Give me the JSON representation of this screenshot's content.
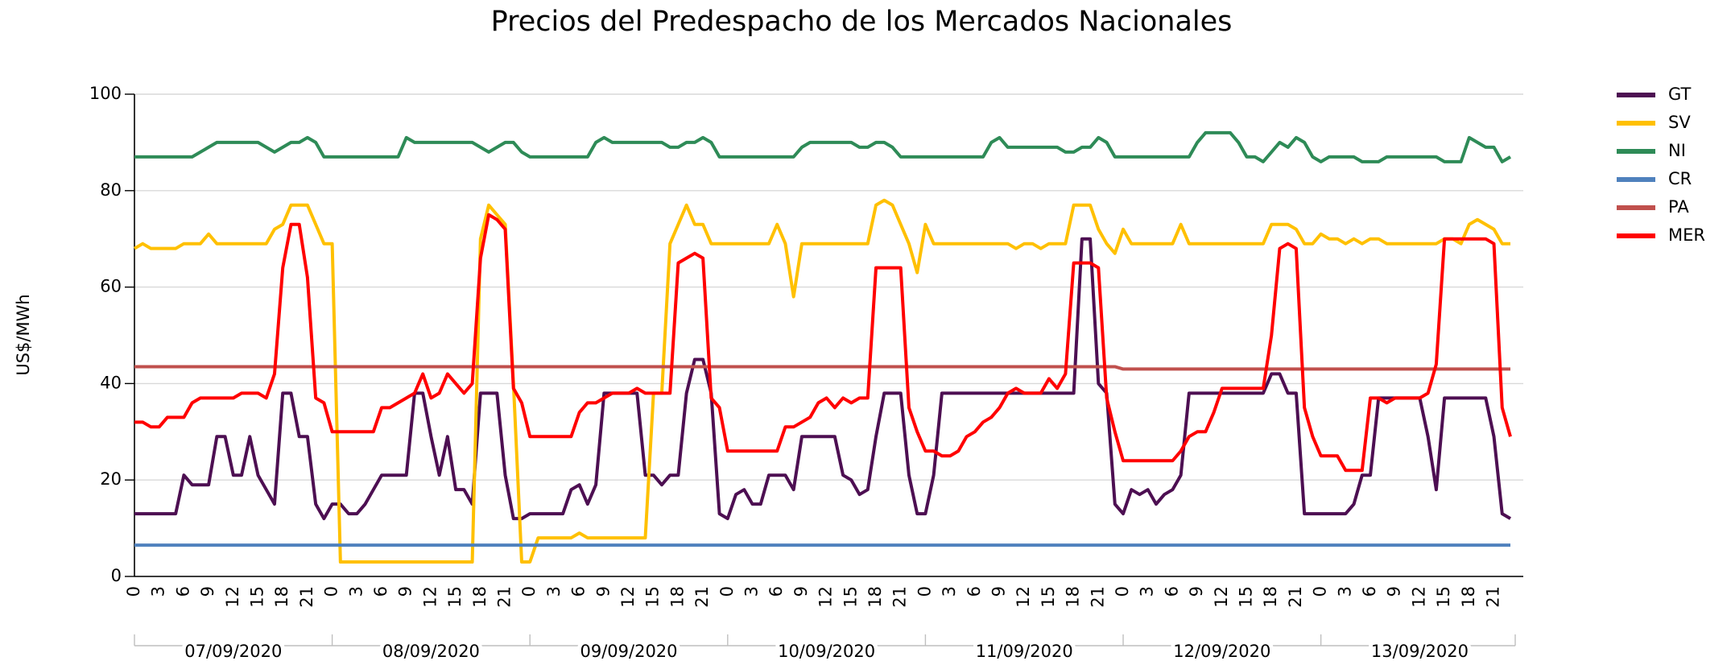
{
  "chart_data": {
    "type": "line",
    "title": "Precios del Predespacho de los Mercados Nacionales",
    "y_label": "US$/MWh",
    "ylim": [
      0,
      100
    ],
    "yticks": [
      0,
      20,
      40,
      60,
      80,
      100
    ],
    "grid": true,
    "legend": "right",
    "categories": [
      "0",
      null,
      null,
      "3",
      null,
      null,
      "6",
      null,
      null,
      "9",
      null,
      null,
      "12",
      null,
      null,
      "15",
      null,
      null,
      "18",
      null,
      null,
      "21",
      null,
      null,
      "0",
      null,
      null,
      "3",
      null,
      null,
      "6",
      null,
      null,
      "9",
      null,
      null,
      "12",
      null,
      null,
      "15",
      null,
      null,
      "18",
      null,
      null,
      "21",
      null,
      null,
      "0",
      null,
      null,
      "3",
      null,
      null,
      "6",
      null,
      null,
      "9",
      null,
      null,
      "12",
      null,
      null,
      "15",
      null,
      null,
      "18",
      null,
      null,
      "21",
      null,
      null,
      "0",
      null,
      null,
      "3",
      null,
      null,
      "6",
      null,
      null,
      "9",
      null,
      null,
      "12",
      null,
      null,
      "15",
      null,
      null,
      "18",
      null,
      null,
      "21",
      null,
      null,
      "0",
      null,
      null,
      "3",
      null,
      null,
      "6",
      null,
      null,
      "9",
      null,
      null,
      "12",
      null,
      null,
      "15",
      null,
      null,
      "18",
      null,
      null,
      "21",
      null,
      null,
      "0",
      null,
      null,
      "3",
      null,
      null,
      "6",
      null,
      null,
      "9",
      null,
      null,
      "12",
      null,
      null,
      "15",
      null,
      null,
      "18",
      null,
      null,
      "21",
      null,
      null,
      "0",
      null,
      null,
      "3",
      null,
      null,
      "6",
      null,
      null,
      "9",
      null,
      null,
      "12",
      null,
      null,
      "15",
      null,
      null,
      "18",
      null,
      null,
      "21",
      null,
      null
    ],
    "date_groups": [
      "07/09/2020",
      "08/09/2020",
      "09/09/2020",
      "10/09/2020",
      "11/09/2020",
      "12/09/2020",
      "13/09/2020"
    ],
    "series": [
      {
        "name": "GT",
        "color": "#4d0f52",
        "values": [
          13,
          13,
          13,
          13,
          13,
          13,
          21,
          19,
          19,
          19,
          29,
          29,
          21,
          21,
          29,
          21,
          18,
          15,
          38,
          38,
          29,
          29,
          15,
          12,
          15,
          15,
          13,
          13,
          15,
          18,
          21,
          21,
          21,
          21,
          38,
          38,
          29,
          21,
          29,
          18,
          18,
          15,
          38,
          38,
          38,
          21,
          12,
          12,
          13,
          13,
          13,
          13,
          13,
          18,
          19,
          15,
          19,
          38,
          38,
          38,
          38,
          38,
          21,
          21,
          19,
          21,
          21,
          38,
          45,
          45,
          38,
          13,
          12,
          17,
          18,
          15,
          15,
          21,
          21,
          21,
          18,
          29,
          29,
          29,
          29,
          29,
          21,
          20,
          17,
          18,
          29,
          38,
          38,
          38,
          21,
          13,
          13,
          21,
          38,
          38,
          38,
          38,
          38,
          38,
          38,
          38,
          38,
          38,
          38,
          38,
          38,
          38,
          38,
          38,
          38,
          70,
          70,
          40,
          38,
          15,
          13,
          18,
          17,
          18,
          15,
          17,
          18,
          21,
          38,
          38,
          38,
          38,
          38,
          38,
          38,
          38,
          38,
          38,
          42,
          42,
          38,
          38,
          13,
          13,
          13,
          13,
          13,
          13,
          15,
          21,
          21,
          37,
          37,
          37,
          37,
          37,
          37,
          29,
          18,
          37,
          37,
          37,
          37,
          37,
          37,
          29,
          13,
          12
        ]
      },
      {
        "name": "SV",
        "color": "#ffc000",
        "values": [
          68,
          69,
          68,
          68,
          68,
          68,
          69,
          69,
          69,
          71,
          69,
          69,
          69,
          69,
          69,
          69,
          69,
          72,
          73,
          77,
          77,
          77,
          73,
          69,
          69,
          3,
          3,
          3,
          3,
          3,
          3,
          3,
          3,
          3,
          3,
          3,
          3,
          3,
          3,
          3,
          3,
          3,
          70,
          77,
          75,
          73,
          40,
          3,
          3,
          8,
          8,
          8,
          8,
          8,
          9,
          8,
          8,
          8,
          8,
          8,
          8,
          8,
          8,
          38,
          38,
          69,
          73,
          77,
          73,
          73,
          69,
          69,
          69,
          69,
          69,
          69,
          69,
          69,
          73,
          69,
          58,
          69,
          69,
          69,
          69,
          69,
          69,
          69,
          69,
          69,
          77,
          78,
          77,
          73,
          69,
          63,
          73,
          69,
          69,
          69,
          69,
          69,
          69,
          69,
          69,
          69,
          69,
          68,
          69,
          69,
          68,
          69,
          69,
          69,
          77,
          77,
          77,
          72,
          69,
          67,
          72,
          69,
          69,
          69,
          69,
          69,
          69,
          73,
          69,
          69,
          69,
          69,
          69,
          69,
          69,
          69,
          69,
          69,
          73,
          73,
          73,
          72,
          69,
          69,
          71,
          70,
          70,
          69,
          70,
          69,
          70,
          70,
          69,
          69,
          69,
          69,
          69,
          69,
          69,
          70,
          70,
          69,
          73,
          74,
          73,
          72,
          69,
          69
        ]
      },
      {
        "name": "NI",
        "color": "#2e8b57",
        "values": [
          87,
          87,
          87,
          87,
          87,
          87,
          87,
          87,
          88,
          89,
          90,
          90,
          90,
          90,
          90,
          90,
          89,
          88,
          89,
          90,
          90,
          91,
          90,
          87,
          87,
          87,
          87,
          87,
          87,
          87,
          87,
          87,
          87,
          91,
          90,
          90,
          90,
          90,
          90,
          90,
          90,
          90,
          89,
          88,
          89,
          90,
          90,
          88,
          87,
          87,
          87,
          87,
          87,
          87,
          87,
          87,
          90,
          91,
          90,
          90,
          90,
          90,
          90,
          90,
          90,
          89,
          89,
          90,
          90,
          91,
          90,
          87,
          87,
          87,
          87,
          87,
          87,
          87,
          87,
          87,
          87,
          89,
          90,
          90,
          90,
          90,
          90,
          90,
          89,
          89,
          90,
          90,
          89,
          87,
          87,
          87,
          87,
          87,
          87,
          87,
          87,
          87,
          87,
          87,
          90,
          91,
          89,
          89,
          89,
          89,
          89,
          89,
          89,
          88,
          88,
          89,
          89,
          91,
          90,
          87,
          87,
          87,
          87,
          87,
          87,
          87,
          87,
          87,
          87,
          90,
          92,
          92,
          92,
          92,
          90,
          87,
          87,
          86,
          88,
          90,
          89,
          91,
          90,
          87,
          86,
          87,
          87,
          87,
          87,
          86,
          86,
          86,
          87,
          87,
          87,
          87,
          87,
          87,
          87,
          86,
          86,
          86,
          91,
          90,
          89,
          89,
          86,
          87
        ]
      },
      {
        "name": "CR",
        "color": "#4f81bd",
        "values": [
          6.5,
          6.5,
          6.5,
          6.5,
          6.5,
          6.5,
          6.5,
          6.5,
          6.5,
          6.5,
          6.5,
          6.5,
          6.5,
          6.5,
          6.5,
          6.5,
          6.5,
          6.5,
          6.5,
          6.5,
          6.5,
          6.5,
          6.5,
          6.5,
          6.5,
          6.5,
          6.5,
          6.5,
          6.5,
          6.5,
          6.5,
          6.5,
          6.5,
          6.5,
          6.5,
          6.5,
          6.5,
          6.5,
          6.5,
          6.5,
          6.5,
          6.5,
          6.5,
          6.5,
          6.5,
          6.5,
          6.5,
          6.5,
          6.5,
          6.5,
          6.5,
          6.5,
          6.5,
          6.5,
          6.5,
          6.5,
          6.5,
          6.5,
          6.5,
          6.5,
          6.5,
          6.5,
          6.5,
          6.5,
          6.5,
          6.5,
          6.5,
          6.5,
          6.5,
          6.5,
          6.5,
          6.5,
          6.5,
          6.5,
          6.5,
          6.5,
          6.5,
          6.5,
          6.5,
          6.5,
          6.5,
          6.5,
          6.5,
          6.5,
          6.5,
          6.5,
          6.5,
          6.5,
          6.5,
          6.5,
          6.5,
          6.5,
          6.5,
          6.5,
          6.5,
          6.5,
          6.5,
          6.5,
          6.5,
          6.5,
          6.5,
          6.5,
          6.5,
          6.5,
          6.5,
          6.5,
          6.5,
          6.5,
          6.5,
          6.5,
          6.5,
          6.5,
          6.5,
          6.5,
          6.5,
          6.5,
          6.5,
          6.5,
          6.5,
          6.5,
          6.5,
          6.5,
          6.5,
          6.5,
          6.5,
          6.5,
          6.5,
          6.5,
          6.5,
          6.5,
          6.5,
          6.5,
          6.5,
          6.5,
          6.5,
          6.5,
          6.5,
          6.5,
          6.5,
          6.5,
          6.5,
          6.5,
          6.5,
          6.5,
          6.5,
          6.5,
          6.5,
          6.5,
          6.5,
          6.5,
          6.5,
          6.5,
          6.5,
          6.5,
          6.5,
          6.5,
          6.5,
          6.5,
          6.5,
          6.5,
          6.5,
          6.5,
          6.5,
          6.5,
          6.5,
          6.5,
          6.5,
          6.5
        ]
      },
      {
        "name": "PA",
        "color": "#c0504d",
        "values": [
          43.5,
          43.5,
          43.5,
          43.5,
          43.5,
          43.5,
          43.5,
          43.5,
          43.5,
          43.5,
          43.5,
          43.5,
          43.5,
          43.5,
          43.5,
          43.5,
          43.5,
          43.5,
          43.5,
          43.5,
          43.5,
          43.5,
          43.5,
          43.5,
          43.5,
          43.5,
          43.5,
          43.5,
          43.5,
          43.5,
          43.5,
          43.5,
          43.5,
          43.5,
          43.5,
          43.5,
          43.5,
          43.5,
          43.5,
          43.5,
          43.5,
          43.5,
          43.5,
          43.5,
          43.5,
          43.5,
          43.5,
          43.5,
          43.5,
          43.5,
          43.5,
          43.5,
          43.5,
          43.5,
          43.5,
          43.5,
          43.5,
          43.5,
          43.5,
          43.5,
          43.5,
          43.5,
          43.5,
          43.5,
          43.5,
          43.5,
          43.5,
          43.5,
          43.5,
          43.5,
          43.5,
          43.5,
          43.5,
          43.5,
          43.5,
          43.5,
          43.5,
          43.5,
          43.5,
          43.5,
          43.5,
          43.5,
          43.5,
          43.5,
          43.5,
          43.5,
          43.5,
          43.5,
          43.5,
          43.5,
          43.5,
          43.5,
          43.5,
          43.5,
          43.5,
          43.5,
          43.5,
          43.5,
          43.5,
          43.5,
          43.5,
          43.5,
          43.5,
          43.5,
          43.5,
          43.5,
          43.5,
          43.5,
          43.5,
          43.5,
          43.5,
          43.5,
          43.5,
          43.5,
          43.5,
          43.5,
          43.5,
          43.5,
          43.5,
          43.5,
          43,
          43,
          43,
          43,
          43,
          43,
          43,
          43,
          43,
          43,
          43,
          43,
          43,
          43,
          43,
          43,
          43,
          43,
          43,
          43,
          43,
          43,
          43,
          43,
          43,
          43,
          43,
          43,
          43,
          43,
          43,
          43,
          43,
          43,
          43,
          43,
          43,
          43,
          43,
          43,
          43,
          43,
          43,
          43,
          43,
          43,
          43,
          43
        ]
      },
      {
        "name": "MER",
        "color": "#ff0000",
        "values": [
          32,
          32,
          31,
          31,
          33,
          33,
          33,
          36,
          37,
          37,
          37,
          37,
          37,
          38,
          38,
          38,
          37,
          42,
          64,
          73,
          73,
          62,
          37,
          36,
          30,
          30,
          30,
          30,
          30,
          30,
          35,
          35,
          36,
          37,
          38,
          42,
          37,
          38,
          42,
          40,
          38,
          40,
          66,
          75,
          74,
          72,
          39,
          36,
          29,
          29,
          29,
          29,
          29,
          29,
          34,
          36,
          36,
          37,
          38,
          38,
          38,
          39,
          38,
          38,
          38,
          38,
          65,
          66,
          67,
          66,
          37,
          35,
          26,
          26,
          26,
          26,
          26,
          26,
          26,
          31,
          31,
          32,
          33,
          36,
          37,
          35,
          37,
          36,
          37,
          37,
          64,
          64,
          64,
          64,
          35,
          30,
          26,
          26,
          25,
          25,
          26,
          29,
          30,
          32,
          33,
          35,
          38,
          39,
          38,
          38,
          38,
          41,
          39,
          42,
          65,
          65,
          65,
          64,
          37,
          30,
          24,
          24,
          24,
          24,
          24,
          24,
          24,
          26,
          29,
          30,
          30,
          34,
          39,
          39,
          39,
          39,
          39,
          39,
          50,
          68,
          69,
          68,
          35,
          29,
          25,
          25,
          25,
          22,
          22,
          22,
          37,
          37,
          36,
          37,
          37,
          37,
          37,
          38,
          44,
          70,
          70,
          70,
          70,
          70,
          70,
          69,
          35,
          29
        ]
      }
    ]
  }
}
